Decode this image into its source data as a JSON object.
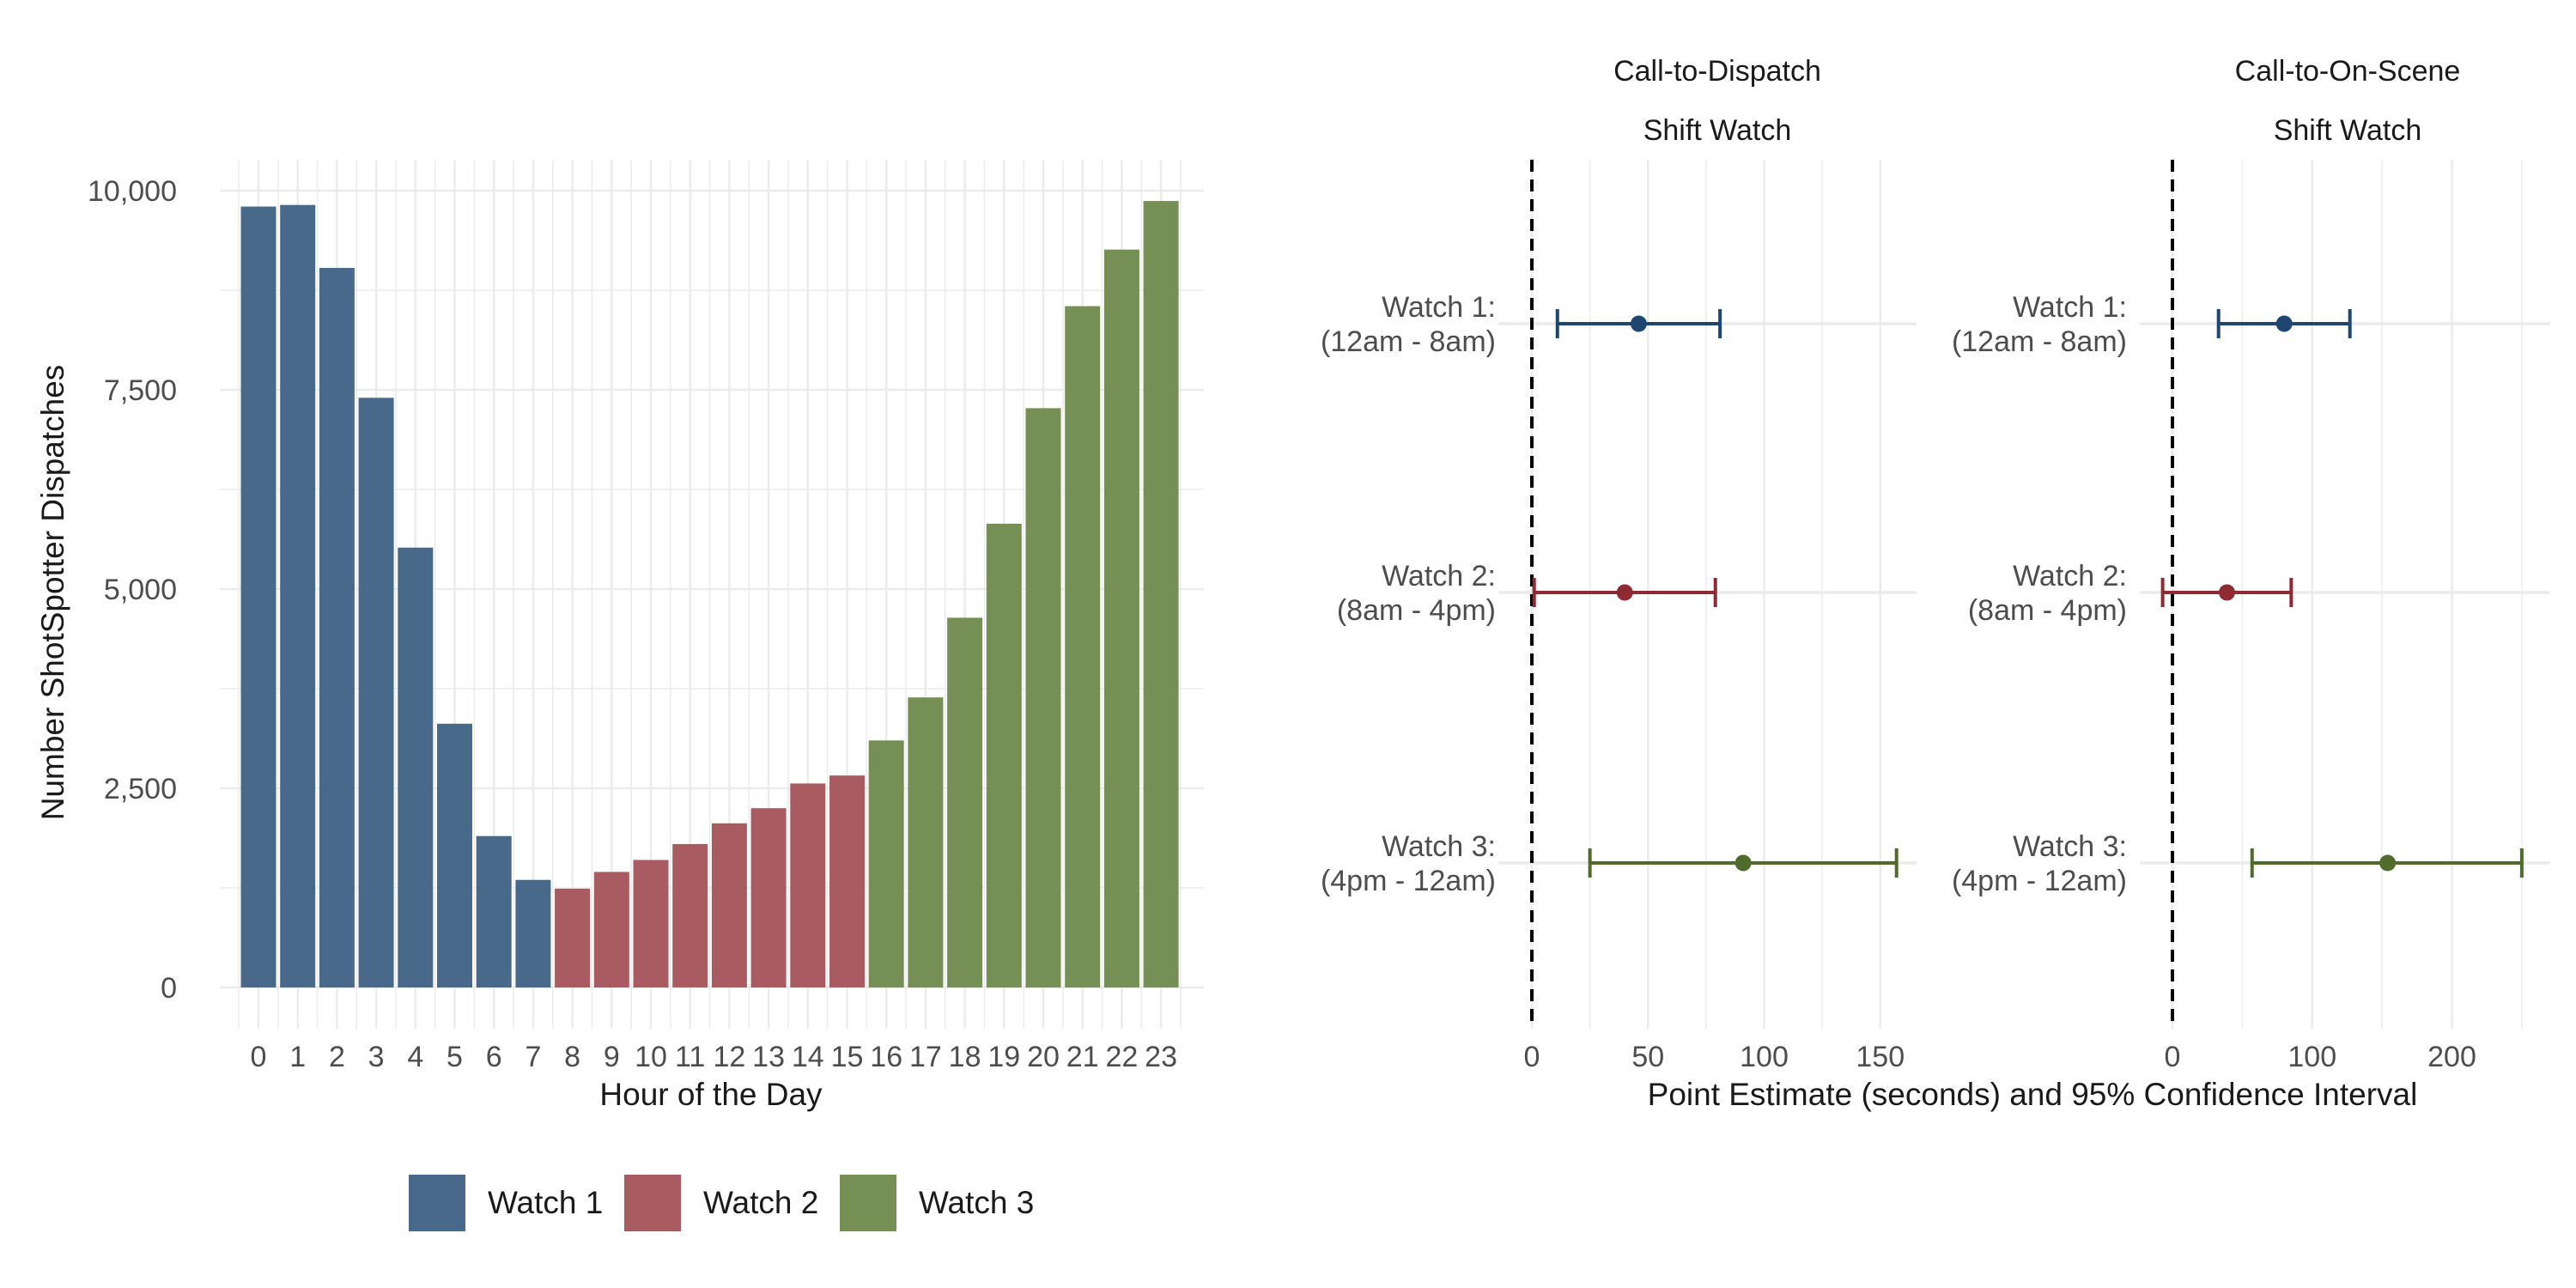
{
  "colors": {
    "watch1": "#48698a",
    "watch2": "#a85b61",
    "watch3": "#768f55",
    "watch1_dark": "#1f4670",
    "watch2_dark": "#8f2a33",
    "watch3_dark": "#4f6c2c",
    "grid": "#ebebeb"
  },
  "chart_data": [
    {
      "type": "bar",
      "title": "",
      "xlabel": "Hour of the Day",
      "ylabel": "Number ShotSpotter Dispatches",
      "categories": [
        "0",
        "1",
        "2",
        "3",
        "4",
        "5",
        "6",
        "7",
        "8",
        "9",
        "10",
        "11",
        "12",
        "13",
        "14",
        "15",
        "16",
        "17",
        "18",
        "19",
        "20",
        "21",
        "22",
        "23"
      ],
      "values": [
        9800,
        9820,
        9030,
        7400,
        5520,
        3310,
        1900,
        1350,
        1240,
        1450,
        1600,
        1800,
        2060,
        2250,
        2560,
        2660,
        3100,
        3640,
        4640,
        5820,
        7270,
        8550,
        9260,
        9870
      ],
      "group": [
        "Watch 1",
        "Watch 1",
        "Watch 1",
        "Watch 1",
        "Watch 1",
        "Watch 1",
        "Watch 1",
        "Watch 1",
        "Watch 2",
        "Watch 2",
        "Watch 2",
        "Watch 2",
        "Watch 2",
        "Watch 2",
        "Watch 2",
        "Watch 2",
        "Watch 3",
        "Watch 3",
        "Watch 3",
        "Watch 3",
        "Watch 3",
        "Watch 3",
        "Watch 3",
        "Watch 3"
      ],
      "yticks": [
        0,
        2500,
        5000,
        7500,
        10000
      ],
      "ytick_labels": [
        "0",
        "2,500",
        "5,000",
        "7,500",
        "10,000"
      ],
      "ylim": [
        0,
        10400
      ],
      "legend": [
        "Watch 1",
        "Watch 2",
        "Watch 3"
      ],
      "legend_position": "bottom",
      "grid": true
    },
    {
      "type": "scatter",
      "facet_title": "Call-to-Dispatch",
      "facet_subtitle": "Shift Watch",
      "categories": [
        "Watch 1:\n(12am - 8am)",
        "Watch 2:\n(8am - 4pm)",
        "Watch 3:\n(4pm - 12am)"
      ],
      "estimates": [
        46,
        40,
        91
      ],
      "ci_low": [
        11,
        1,
        25
      ],
      "ci_high": [
        81,
        79,
        157
      ],
      "xticks": [
        0,
        50,
        100,
        150
      ],
      "xlim": [
        -1,
        165
      ],
      "reference_line": 0,
      "grid": true
    },
    {
      "type": "scatter",
      "facet_title": "Call-to-On-Scene",
      "facet_subtitle": "Shift Watch",
      "categories": [
        "Watch 1:\n(12am - 8am)",
        "Watch 2:\n(8am - 4pm)",
        "Watch 3:\n(4pm - 12am)"
      ],
      "estimates": [
        80,
        39,
        154
      ],
      "ci_low": [
        33,
        -7,
        57
      ],
      "ci_high": [
        127,
        85,
        250
      ],
      "xticks": [
        0,
        100,
        200
      ],
      "xlim": [
        -12,
        258
      ],
      "reference_line": 0,
      "grid": true
    }
  ],
  "shared_xlabel": "Point Estimate (seconds) and 95% Confidence Interval"
}
